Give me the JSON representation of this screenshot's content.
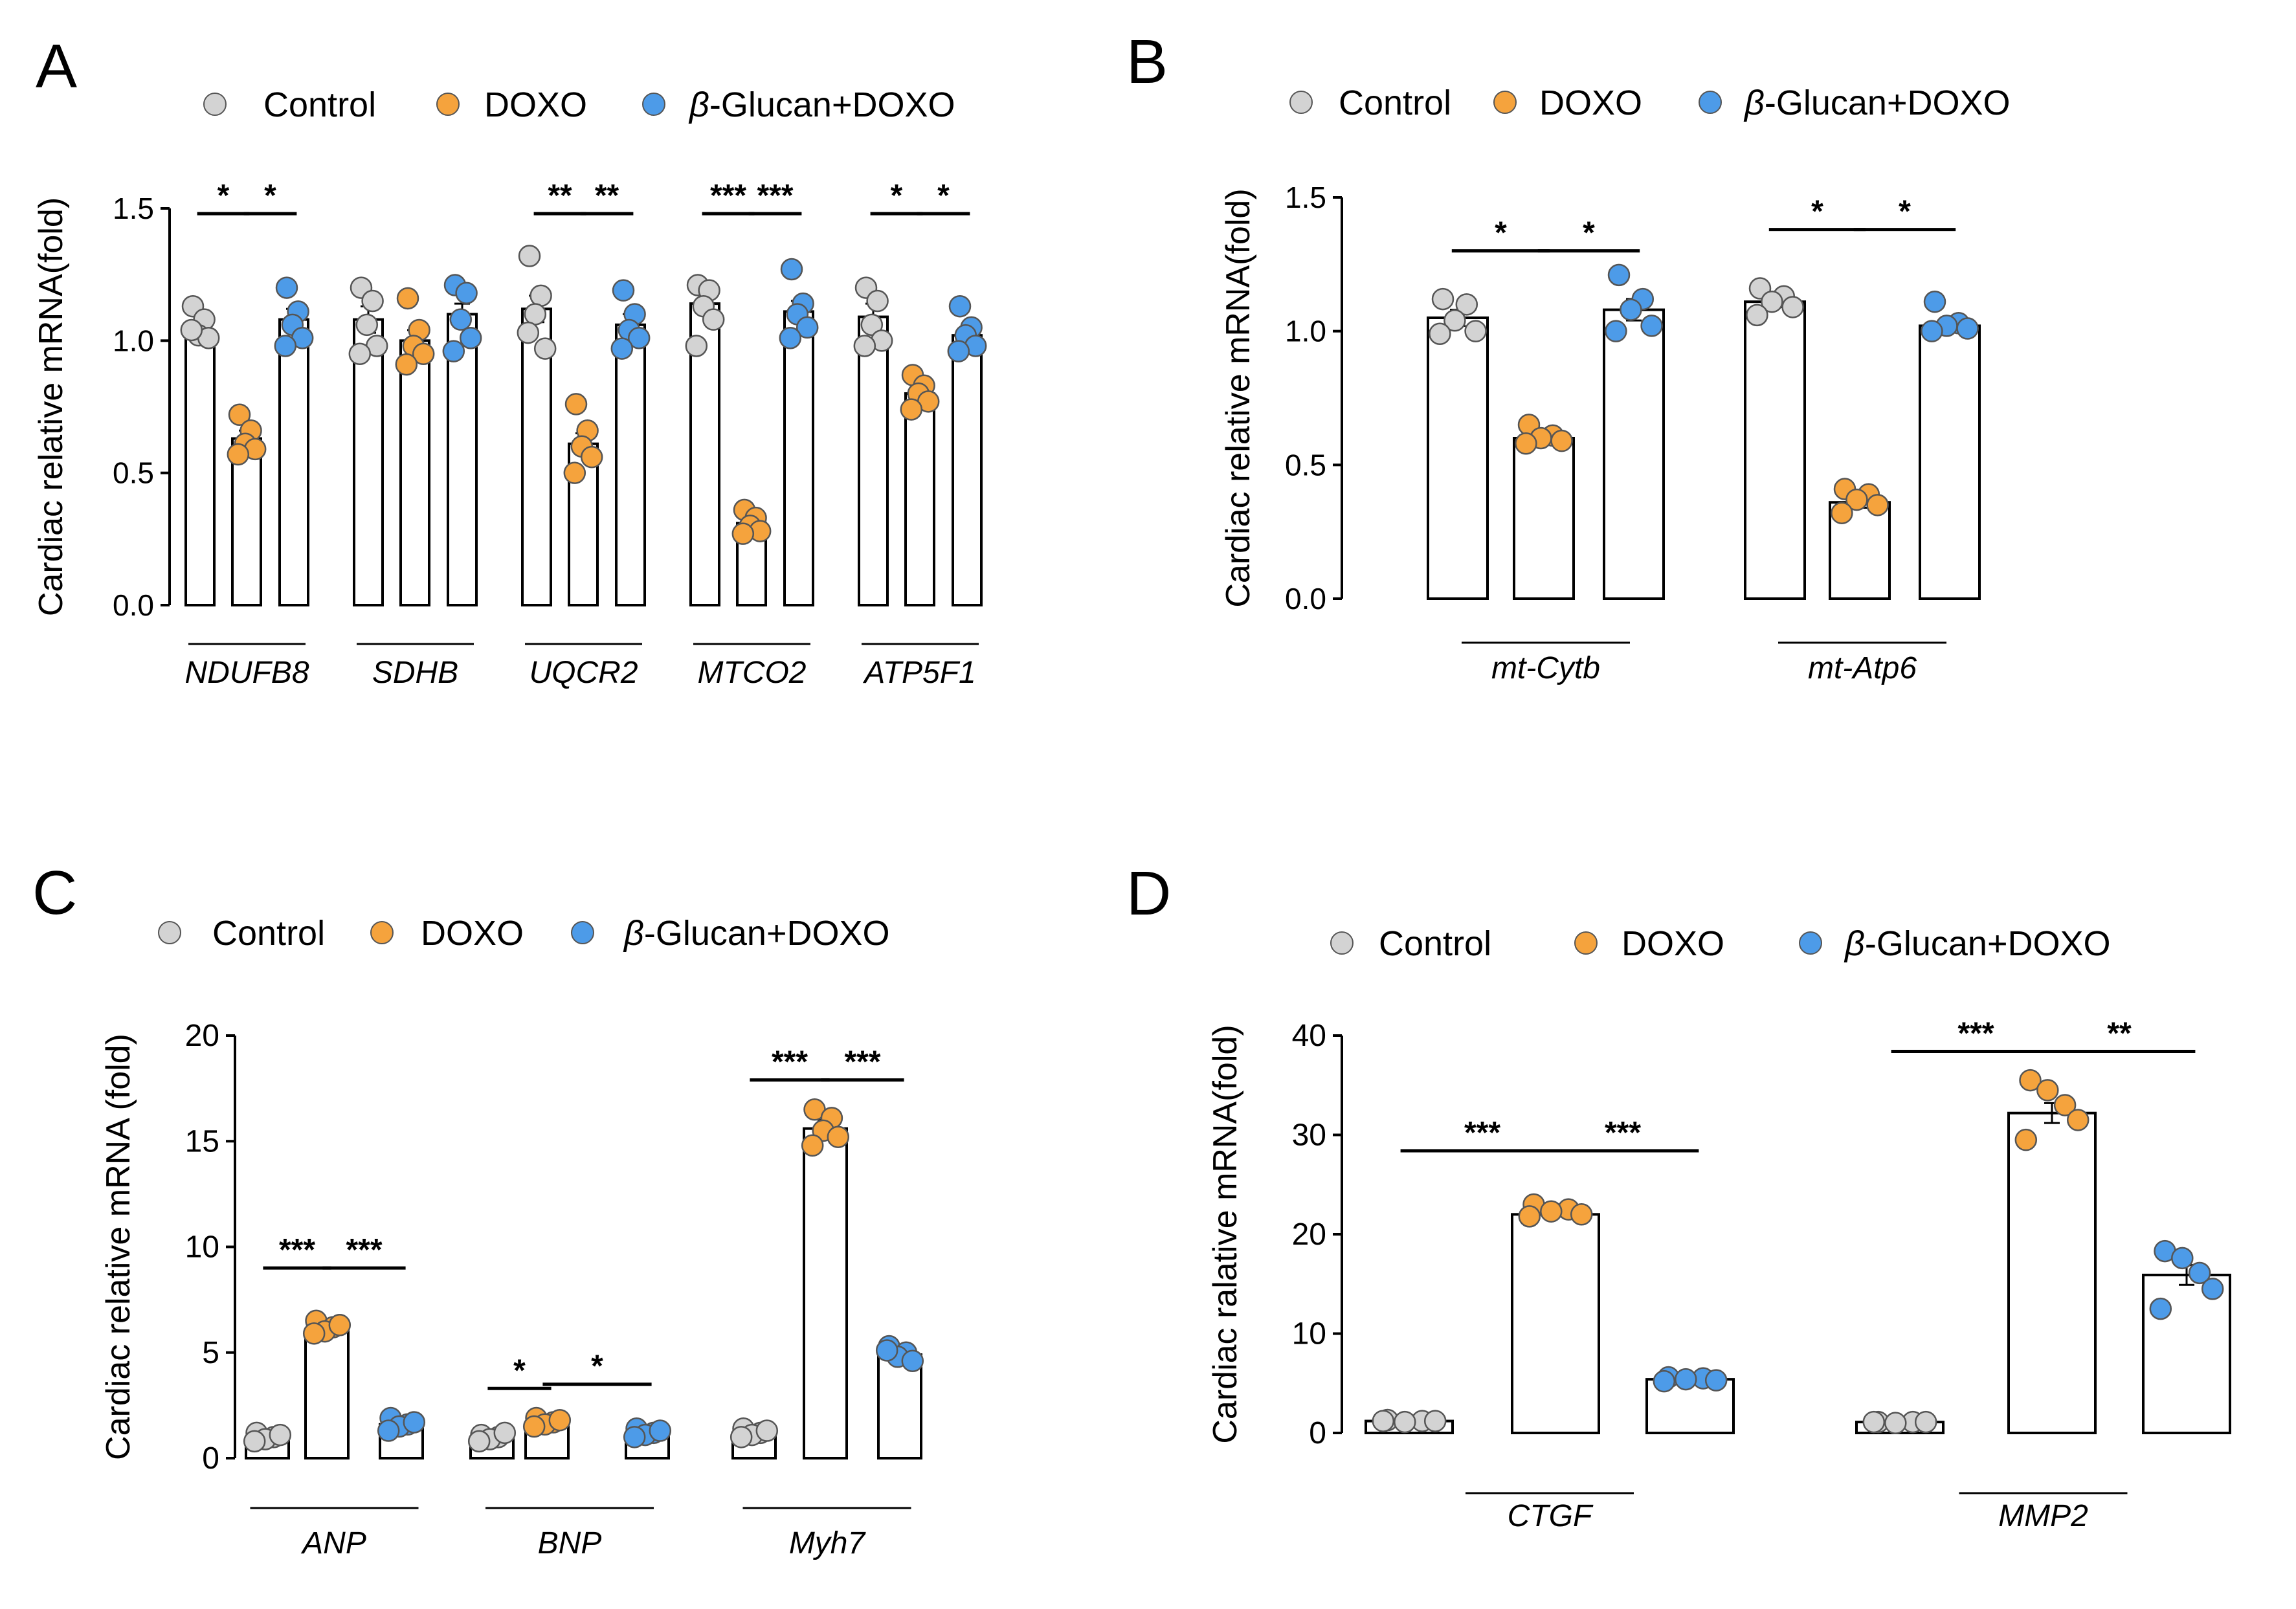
{
  "figure": {
    "colors": {
      "control": "#d3d3d3",
      "doxo": "#f5a33d",
      "glucan": "#4d9be8",
      "bar": "#ffffff",
      "axis": "#000000"
    }
  },
  "chart_data": [
    {
      "id": "A",
      "type": "bar",
      "panel_label": "A",
      "ylabel": "Cardiac relative mRNA(fold)",
      "ylim": [
        0,
        1.5
      ],
      "yticks": [
        "0.0",
        "0.5",
        "1.0",
        "1.5"
      ],
      "legend": [
        "Control",
        "DOXO",
        "β-Glucan+DOXO"
      ],
      "legend_position": "top",
      "categories": [
        "NDUFB8",
        "SDHB",
        "UQCR2",
        "MTCO2",
        "ATP5F1"
      ],
      "series": [
        {
          "name": "Control",
          "values": [
            1.04,
            1.08,
            1.12,
            1.14,
            1.09
          ],
          "points": [
            [
              1.13,
              1.08,
              1.02,
              1.01,
              1.04
            ],
            [
              1.2,
              1.15,
              1.06,
              0.98,
              0.95
            ],
            [
              1.32,
              1.17,
              1.1,
              0.97,
              1.03
            ],
            [
              1.21,
              1.19,
              1.13,
              1.08,
              0.98
            ],
            [
              1.2,
              1.15,
              1.06,
              1.0,
              0.98
            ]
          ]
        },
        {
          "name": "DOXO",
          "values": [
            0.63,
            1.0,
            0.61,
            0.31,
            0.8
          ],
          "points": [
            [
              0.72,
              0.66,
              0.61,
              0.59,
              0.57
            ],
            [
              1.16,
              1.04,
              0.98,
              0.95,
              0.91
            ],
            [
              0.76,
              0.66,
              0.6,
              0.56,
              0.5
            ],
            [
              0.36,
              0.33,
              0.3,
              0.28,
              0.27
            ],
            [
              0.87,
              0.83,
              0.8,
              0.77,
              0.74
            ]
          ]
        },
        {
          "name": "β-Glucan+DOXO",
          "values": [
            1.08,
            1.1,
            1.06,
            1.11,
            1.02
          ],
          "points": [
            [
              1.2,
              1.11,
              1.06,
              1.01,
              0.98
            ],
            [
              1.21,
              1.18,
              1.08,
              1.01,
              0.96
            ],
            [
              1.19,
              1.1,
              1.04,
              1.01,
              0.97
            ],
            [
              1.27,
              1.14,
              1.1,
              1.05,
              1.01
            ],
            [
              1.13,
              1.05,
              1.02,
              0.98,
              0.96
            ]
          ]
        }
      ],
      "sem": [
        [
          0.03,
          0.05,
          0.05,
          0.04,
          0.05
        ],
        [
          0.03,
          0.04,
          0.04,
          0.02,
          0.03
        ],
        [
          0.04,
          0.04,
          0.04,
          0.04,
          0.03
        ]
      ],
      "significance": [
        {
          "category": 0,
          "from": 0,
          "to": 1,
          "label": "*",
          "y": 1.48
        },
        {
          "category": 0,
          "from": 1,
          "to": 2,
          "label": "*",
          "y": 1.48
        },
        {
          "category": 2,
          "from": 0,
          "to": 1,
          "label": "**",
          "y": 1.48
        },
        {
          "category": 2,
          "from": 1,
          "to": 2,
          "label": "**",
          "y": 1.48
        },
        {
          "category": 3,
          "from": 0,
          "to": 1,
          "label": "***",
          "y": 1.48
        },
        {
          "category": 3,
          "from": 1,
          "to": 2,
          "label": "***",
          "y": 1.48
        },
        {
          "category": 4,
          "from": 0,
          "to": 1,
          "label": "*",
          "y": 1.48
        },
        {
          "category": 4,
          "from": 1,
          "to": 2,
          "label": "*",
          "y": 1.48
        }
      ]
    },
    {
      "id": "B",
      "type": "bar",
      "panel_label": "B",
      "ylabel": "Cardiac relative mRNA(fold)",
      "ylim": [
        0,
        1.5
      ],
      "yticks": [
        "0.0",
        "0.5",
        "1.0",
        "1.5"
      ],
      "legend": [
        "Control",
        "DOXO",
        "β-Glucan+DOXO"
      ],
      "legend_position": "top",
      "categories": [
        "mt-Cytb",
        "mt-Atp6"
      ],
      "series": [
        {
          "name": "Control",
          "values": [
            1.05,
            1.11
          ],
          "points": [
            [
              1.12,
              1.1,
              1.04,
              1.0,
              0.99
            ],
            [
              1.16,
              1.13,
              1.11,
              1.09,
              1.06
            ]
          ]
        },
        {
          "name": "DOXO",
          "values": [
            0.6,
            0.36
          ],
          "points": [
            [
              0.65,
              0.61,
              0.6,
              0.59,
              0.58
            ],
            [
              0.41,
              0.39,
              0.37,
              0.35,
              0.32
            ]
          ]
        },
        {
          "name": "β-Glucan+DOXO",
          "values": [
            1.08,
            1.02
          ],
          "points": [
            [
              1.21,
              1.12,
              1.08,
              1.02,
              1.0
            ],
            [
              1.11,
              1.03,
              1.02,
              1.01,
              1.0
            ]
          ]
        }
      ],
      "sem": [
        [
          0.03,
          0.02
        ],
        [
          0.01,
          0.02
        ],
        [
          0.04,
          0.02
        ]
      ],
      "significance": [
        {
          "category": 0,
          "from": 0,
          "to": 1,
          "label": "*",
          "y": 1.3
        },
        {
          "category": 0,
          "from": 1,
          "to": 2,
          "label": "*",
          "y": 1.3
        },
        {
          "category": 1,
          "from": 0,
          "to": 1,
          "label": "*",
          "y": 1.38
        },
        {
          "category": 1,
          "from": 1,
          "to": 2,
          "label": "*",
          "y": 1.38
        }
      ]
    },
    {
      "id": "C",
      "type": "bar",
      "panel_label": "C",
      "ylabel": "Cardiac relative mRNA (fold)",
      "ylim": [
        0,
        20
      ],
      "yticks": [
        "0",
        "5",
        "10",
        "15",
        "20"
      ],
      "legend": [
        "Control",
        "DOXO",
        "β-Glucan+DOXO"
      ],
      "legend_position": "top",
      "categories": [
        "ANP",
        "BNP",
        "Myh7"
      ],
      "series": [
        {
          "name": "Control",
          "values": [
            1.0,
            1.0,
            1.2
          ],
          "points": [
            [
              1.2,
              1.0,
              0.9,
              1.1,
              0.8
            ],
            [
              1.1,
              1.0,
              0.9,
              1.2,
              0.8
            ],
            [
              1.4,
              1.2,
              1.1,
              1.3,
              1.0
            ]
          ]
        },
        {
          "name": "DOXO",
          "values": [
            6.1,
            1.7,
            15.6
          ],
          "points": [
            [
              6.5,
              6.2,
              6.0,
              6.3,
              5.9
            ],
            [
              1.9,
              1.7,
              1.6,
              1.8,
              1.5
            ],
            [
              16.5,
              16.1,
              15.5,
              15.2,
              14.8
            ]
          ]
        },
        {
          "name": "β-Glucan+DOXO",
          "values": [
            1.6,
            1.2,
            4.9
          ],
          "points": [
            [
              1.9,
              1.6,
              1.5,
              1.7,
              1.3
            ],
            [
              1.4,
              1.2,
              1.1,
              1.3,
              1.0
            ],
            [
              5.3,
              5.0,
              4.8,
              4.6,
              5.1
            ]
          ]
        }
      ],
      "sem": [
        [
          0.1,
          0.1,
          0.1
        ],
        [
          0.2,
          0.1,
          0.4
        ],
        [
          0.1,
          0.1,
          0.2
        ]
      ],
      "significance": [
        {
          "category": 0,
          "from": 0,
          "to": 1,
          "label": "***",
          "y": 9.0
        },
        {
          "category": 0,
          "from": 1,
          "to": 2,
          "label": "***",
          "y": 9.0
        },
        {
          "category": 1,
          "from": 0,
          "to": 1,
          "label": "*",
          "y": 3.3
        },
        {
          "category": 1,
          "from": 1,
          "to": 2,
          "label": "*",
          "y": 3.5
        },
        {
          "category": 2,
          "from": 0,
          "to": 1,
          "label": "***",
          "y": 17.9
        },
        {
          "category": 2,
          "from": 1,
          "to": 2,
          "label": "***",
          "y": 17.9
        }
      ]
    },
    {
      "id": "D",
      "type": "bar",
      "panel_label": "D",
      "ylabel": "Cardiac ralative mRNA(fold)",
      "ylim": [
        0,
        40
      ],
      "yticks": [
        "0",
        "10",
        "20",
        "30",
        "40"
      ],
      "legend": [
        "Control",
        "DOXO",
        "β-Glucan+DOXO"
      ],
      "legend_position": "top",
      "categories": [
        "CTGF",
        "MMP2"
      ],
      "series": [
        {
          "name": "Control",
          "values": [
            1.2,
            1.1
          ],
          "points": [
            [
              1.3,
              1.2,
              1.1,
              1.2,
              1.2
            ],
            [
              1.1,
              1.1,
              1.0,
              1.1,
              1.1
            ]
          ]
        },
        {
          "name": "DOXO",
          "values": [
            22.0,
            32.2
          ],
          "points": [
            [
              23.0,
              22.5,
              22.3,
              22.0,
              21.8
            ],
            [
              35.5,
              33.0,
              34.5,
              31.5,
              29.5
            ]
          ]
        },
        {
          "name": "β-Glucan+DOXO",
          "values": [
            5.4,
            15.9
          ],
          "points": [
            [
              5.6,
              5.5,
              5.4,
              5.3,
              5.2
            ],
            [
              18.3,
              16.1,
              17.6,
              14.5,
              12.5
            ]
          ]
        }
      ],
      "sem": [
        [
          0.1,
          0.1
        ],
        [
          0.2,
          1.0
        ],
        [
          0.1,
          1.0
        ]
      ],
      "significance": [
        {
          "category": 0,
          "from": 0,
          "to": 1,
          "label": "***",
          "y": 28.4
        },
        {
          "category": 0,
          "from": 1,
          "to": 2,
          "label": "***",
          "y": 28.4
        },
        {
          "category": 1,
          "from": 0,
          "to": 1,
          "label": "***",
          "y": 38.4
        },
        {
          "category": 1,
          "from": 1,
          "to": 2,
          "label": "**",
          "y": 38.4
        }
      ]
    }
  ]
}
